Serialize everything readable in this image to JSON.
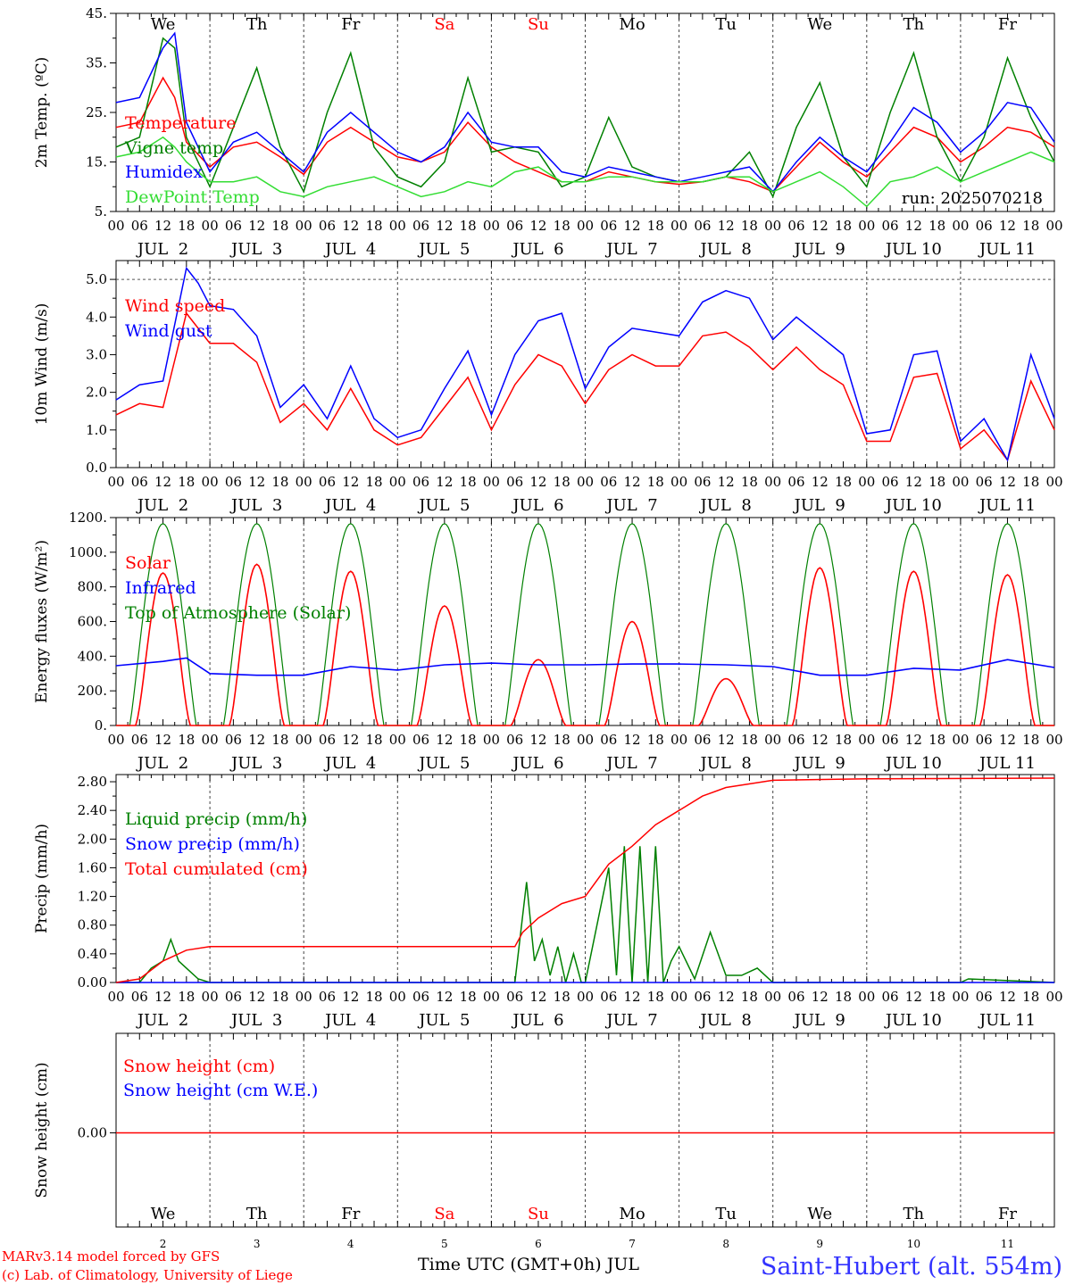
{
  "figure": {
    "location": "Saint-Hubert (alt. 554m)",
    "credit_line1": "MARv3.14 model forced by GFS",
    "credit_line2": "(c) Lab. of Climatology, University of Liege",
    "xaxis_title": "Time UTC (GMT+0h) JUL",
    "run_label": "run: 2025070218",
    "colors": {
      "red": "#ff0000",
      "green": "#008000",
      "blue": "#0000ff",
      "lightgreen": "#33dd33",
      "weekend": "#ff0000",
      "location": "#3333ff"
    }
  },
  "days": {
    "abbr": [
      "We",
      "Th",
      "Fr",
      "Sa",
      "Su",
      "Mo",
      "Tu",
      "We",
      "Th",
      "Fr"
    ],
    "weekend": [
      false,
      false,
      false,
      true,
      true,
      false,
      false,
      false,
      false,
      false
    ],
    "dates": [
      "JUL  2",
      "JUL  3",
      "JUL  4",
      "JUL  5",
      "JUL  6",
      "JUL  7",
      "JUL  8",
      "JUL  9",
      "JUL 10",
      "JUL 11"
    ],
    "numbers": [
      "2",
      "3",
      "4",
      "5",
      "6",
      "7",
      "8",
      "9",
      "10",
      "11"
    ],
    "hour_labels": [
      "00",
      "06",
      "12",
      "18"
    ],
    "final_hour_label": "00"
  },
  "chart_data": [
    {
      "id": "temperature",
      "type": "line",
      "ylabel": "2m Temp. (ºC)",
      "ylim": [
        5,
        45
      ],
      "yticks": [
        5,
        15,
        25,
        35,
        45
      ],
      "ytick_labels": [
        "5.",
        "15.",
        "25.",
        "35.",
        "45."
      ],
      "x_unit": "hours since JUL 2 00 UTC",
      "series": [
        {
          "name": "Temperature",
          "color": "#ff0000",
          "x": [
            0,
            6,
            12,
            15,
            18,
            24,
            30,
            36,
            42,
            48,
            54,
            60,
            66,
            72,
            78,
            84,
            90,
            96,
            102,
            108,
            114,
            120,
            126,
            132,
            138,
            144,
            150,
            156,
            162,
            168,
            174,
            180,
            186,
            192,
            198,
            204,
            210,
            216,
            222,
            228,
            234,
            240
          ],
          "y": [
            22,
            23,
            32,
            28,
            19,
            14,
            18,
            19,
            16,
            12.5,
            19,
            22,
            19,
            16,
            15,
            17,
            23,
            18,
            15,
            13,
            11,
            11,
            13,
            12,
            11,
            10.5,
            11,
            12,
            11,
            9,
            14,
            19,
            15,
            12,
            17,
            22,
            20,
            15,
            18,
            22,
            21,
            18
          ]
        },
        {
          "name": "Vigne temp",
          "color": "#008000",
          "x": [
            0,
            6,
            12,
            15,
            18,
            24,
            30,
            36,
            42,
            48,
            54,
            60,
            66,
            72,
            78,
            84,
            90,
            96,
            102,
            108,
            114,
            120,
            126,
            132,
            138,
            144,
            150,
            156,
            162,
            168,
            174,
            180,
            186,
            192,
            198,
            204,
            210,
            216,
            222,
            228,
            234,
            240
          ],
          "y": [
            18,
            20,
            40,
            38,
            20,
            10,
            22,
            34,
            18,
            9,
            25,
            37,
            18,
            12,
            10,
            15,
            32,
            17,
            18,
            17,
            10,
            12,
            24,
            14,
            12,
            11,
            11,
            12,
            17,
            8,
            22,
            31,
            16,
            10,
            25,
            37,
            20,
            11,
            20,
            36,
            24,
            15
          ]
        },
        {
          "name": "Humidex",
          "color": "#0000ff",
          "x": [
            0,
            6,
            12,
            15,
            18,
            24,
            30,
            36,
            42,
            48,
            54,
            60,
            66,
            72,
            78,
            84,
            90,
            96,
            102,
            108,
            114,
            120,
            126,
            132,
            138,
            144,
            150,
            156,
            162,
            168,
            174,
            180,
            186,
            192,
            198,
            204,
            210,
            216,
            222,
            228,
            234,
            240
          ],
          "y": [
            27,
            28,
            38,
            41,
            23,
            13,
            19,
            21,
            17,
            13,
            21,
            25,
            21,
            17,
            15,
            18,
            25,
            19,
            18,
            18,
            13,
            12,
            14,
            13,
            12,
            11,
            12,
            13,
            14,
            9,
            15,
            20,
            16,
            13,
            19,
            26,
            23,
            17,
            21,
            27,
            26,
            19
          ]
        },
        {
          "name": "DewPoint Temp",
          "color": "#33dd33",
          "x": [
            0,
            6,
            12,
            15,
            18,
            24,
            30,
            36,
            42,
            48,
            54,
            60,
            66,
            72,
            78,
            84,
            90,
            96,
            102,
            108,
            114,
            120,
            126,
            132,
            138,
            144,
            150,
            156,
            162,
            168,
            174,
            180,
            186,
            192,
            198,
            204,
            210,
            216,
            222,
            228,
            234,
            240
          ],
          "y": [
            16,
            17,
            20,
            18,
            15,
            11,
            11,
            12,
            9,
            8,
            10,
            11,
            12,
            10,
            8,
            9,
            11,
            10,
            13,
            14,
            11,
            11,
            12,
            12,
            11,
            11,
            11,
            12,
            12,
            9,
            11,
            13,
            10,
            6,
            11,
            12,
            14,
            11,
            13,
            15,
            17,
            15
          ]
        }
      ]
    },
    {
      "id": "wind",
      "type": "line",
      "ylabel": "10m Wind (m/s)",
      "ylim": [
        0,
        5.5
      ],
      "yticks": [
        0,
        1,
        2,
        3,
        4,
        5
      ],
      "ytick_labels": [
        "0.0",
        "1.0",
        "2.0",
        "3.0",
        "4.0",
        "5.0"
      ],
      "reference_line": 5,
      "x_unit": "hours since JUL 2 00 UTC",
      "series": [
        {
          "name": "Wind speed",
          "color": "#ff0000",
          "x": [
            0,
            6,
            12,
            18,
            21,
            24,
            30,
            36,
            42,
            48,
            54,
            60,
            66,
            72,
            78,
            84,
            90,
            96,
            102,
            108,
            114,
            120,
            126,
            132,
            138,
            144,
            150,
            156,
            162,
            168,
            174,
            180,
            186,
            192,
            198,
            204,
            210,
            216,
            222,
            228,
            234,
            240
          ],
          "y": [
            1.4,
            1.7,
            1.6,
            4.1,
            3.7,
            3.3,
            3.3,
            2.8,
            1.2,
            1.7,
            1.0,
            2.1,
            1.0,
            0.6,
            0.8,
            1.6,
            2.4,
            1.0,
            2.2,
            3.0,
            2.7,
            1.7,
            2.6,
            3.0,
            2.7,
            2.7,
            3.5,
            3.6,
            3.2,
            2.6,
            3.2,
            2.6,
            2.2,
            0.7,
            0.7,
            2.4,
            2.5,
            0.5,
            1.0,
            0.2,
            2.3,
            1.0
          ]
        },
        {
          "name": "Wind gust",
          "color": "#0000ff",
          "x": [
            0,
            6,
            12,
            18,
            21,
            24,
            30,
            36,
            42,
            48,
            54,
            60,
            66,
            72,
            78,
            84,
            90,
            96,
            102,
            108,
            114,
            120,
            126,
            132,
            138,
            144,
            150,
            156,
            162,
            168,
            174,
            180,
            186,
            192,
            198,
            204,
            210,
            216,
            222,
            228,
            234,
            240
          ],
          "y": [
            1.8,
            2.2,
            2.3,
            5.3,
            4.9,
            4.3,
            4.2,
            3.5,
            1.6,
            2.2,
            1.3,
            2.7,
            1.3,
            0.8,
            1.0,
            2.1,
            3.1,
            1.4,
            3.0,
            3.9,
            4.1,
            2.1,
            3.2,
            3.7,
            3.6,
            3.5,
            4.4,
            4.7,
            4.5,
            3.4,
            4.0,
            3.5,
            3.0,
            0.9,
            1.0,
            3.0,
            3.1,
            0.7,
            1.3,
            0.2,
            3.0,
            1.3
          ]
        }
      ]
    },
    {
      "id": "energy",
      "type": "line",
      "ylabel": "Energy fluxes (W/m²)",
      "ylim": [
        0,
        1200
      ],
      "yticks": [
        0,
        200,
        400,
        600,
        800,
        1000,
        1200
      ],
      "ytick_labels": [
        "0.",
        "200.",
        "400.",
        "600.",
        "800.",
        "1000.",
        "1200."
      ],
      "x_unit": "hours since JUL 2 00 UTC",
      "toa_peak": 1165,
      "solar_peaks": [
        880,
        930,
        890,
        690,
        380,
        600,
        270,
        910,
        890,
        870
      ],
      "series": [
        {
          "name": "Solar",
          "color": "#ff0000"
        },
        {
          "name": "Infrared",
          "color": "#0000ff",
          "x": [
            0,
            12,
            18,
            24,
            36,
            48,
            60,
            72,
            84,
            96,
            108,
            120,
            132,
            144,
            156,
            168,
            180,
            192,
            204,
            216,
            228,
            240
          ],
          "y": [
            345,
            370,
            390,
            300,
            290,
            290,
            340,
            320,
            350,
            360,
            350,
            350,
            355,
            355,
            350,
            340,
            290,
            290,
            330,
            320,
            380,
            335
          ]
        },
        {
          "name": "Top of Atmosphere (Solar)",
          "color": "#008000"
        }
      ]
    },
    {
      "id": "precip",
      "type": "line",
      "ylabel": "Precip (mm/h)",
      "ylim": [
        0,
        2.9
      ],
      "yticks": [
        0,
        0.4,
        0.8,
        1.2,
        1.6,
        2.0,
        2.4,
        2.8
      ],
      "ytick_labels": [
        "0.00",
        "0.40",
        "0.80",
        "1.20",
        "1.60",
        "2.00",
        "2.40",
        "2.80"
      ],
      "x_unit": "hours since JUL 2 00 UTC",
      "series": [
        {
          "name": "Liquid precip (mm/h)",
          "color": "#008000",
          "x": [
            0,
            6,
            9,
            12,
            14,
            16,
            18,
            21,
            24,
            102,
            105,
            107,
            109,
            111,
            113,
            115,
            117,
            119,
            120,
            126,
            128,
            130,
            132,
            134,
            136,
            138,
            140,
            142,
            144,
            148,
            152,
            156,
            160,
            164,
            168,
            216,
            218,
            240
          ],
          "y": [
            0,
            0,
            0.2,
            0.3,
            0.6,
            0.3,
            0.2,
            0.05,
            0,
            0,
            1.4,
            0.3,
            0.6,
            0.1,
            0.5,
            0,
            0.4,
            0,
            0,
            1.6,
            0.1,
            1.9,
            0,
            1.9,
            0,
            1.9,
            0,
            0.3,
            0.5,
            0.05,
            0.7,
            0.1,
            0.1,
            0.2,
            0,
            0,
            0.05,
            0
          ]
        },
        {
          "name": "Snow precip (mm/h)",
          "color": "#0000ff",
          "x": [
            0,
            240
          ],
          "y": [
            0,
            0
          ]
        },
        {
          "name": "Total cumulated (cm)",
          "color": "#ff0000",
          "x": [
            0,
            6,
            12,
            18,
            24,
            102,
            104,
            108,
            114,
            120,
            126,
            132,
            138,
            144,
            150,
            156,
            168,
            192,
            240
          ],
          "y": [
            0,
            0.05,
            0.3,
            0.45,
            0.5,
            0.5,
            0.7,
            0.9,
            1.1,
            1.2,
            1.65,
            1.9,
            2.2,
            2.4,
            2.6,
            2.72,
            2.82,
            2.84,
            2.85
          ]
        }
      ]
    },
    {
      "id": "snow",
      "type": "line",
      "ylabel": "Snow height (cm)",
      "yticks": [
        0
      ],
      "ytick_labels": [
        "0.00"
      ],
      "x_unit": "hours since JUL 2 00 UTC",
      "series": [
        {
          "name": "Snow height (cm)",
          "color": "#ff0000",
          "x": [
            0,
            240
          ],
          "y": [
            0,
            0
          ]
        },
        {
          "name": "Snow height (cm W.E.)",
          "color": "#0000ff"
        }
      ]
    }
  ]
}
